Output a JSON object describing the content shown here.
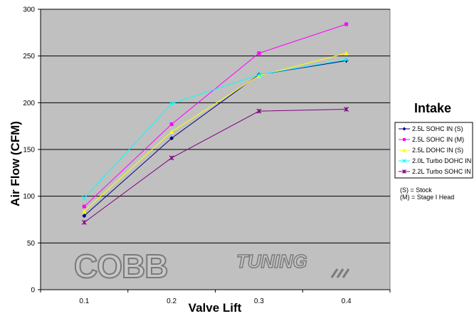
{
  "chart_data": {
    "type": "line",
    "x": [
      0.1,
      0.2,
      0.3,
      0.4
    ],
    "xlabel": "Valve Lift",
    "ylabel": "Air Flow (CFM)",
    "ylim": [
      0,
      300
    ],
    "yticks": [
      "0",
      "50",
      "100",
      "150",
      "200",
      "250",
      "300"
    ],
    "xticks": [
      "0.1",
      "0.2",
      "0.3",
      "0.4"
    ],
    "grid": "horizontal",
    "legend_title": "Intake",
    "legend_position": "right",
    "series": [
      {
        "name": "2.5L SOHC IN (S)",
        "color": "#000080",
        "marker": "diamond",
        "values": [
          79,
          162,
          230,
          245
        ]
      },
      {
        "name": "2.5L SOHC IN (M)",
        "color": "#ff00ff",
        "marker": "square",
        "values": [
          89,
          177,
          253,
          284
        ]
      },
      {
        "name": "2.5L DOHC IN (S)",
        "color": "#ffff00",
        "marker": "triangle",
        "values": [
          84,
          169,
          229,
          253
        ]
      },
      {
        "name": "2.0L Turbo DOHC IN",
        "color": "#00ffff",
        "marker": "x",
        "values": [
          98,
          199,
          230,
          246
        ]
      },
      {
        "name": "2.2L Turbo SOHC IN",
        "color": "#800080",
        "marker": "star",
        "values": [
          72,
          141,
          191,
          193
        ]
      }
    ],
    "notes": [
      "(S) = Stock",
      "(M) = Stage I Head"
    ],
    "watermark": {
      "main": "COBB",
      "sub": "TUNING"
    },
    "plot_background": "#c0c0c0"
  }
}
